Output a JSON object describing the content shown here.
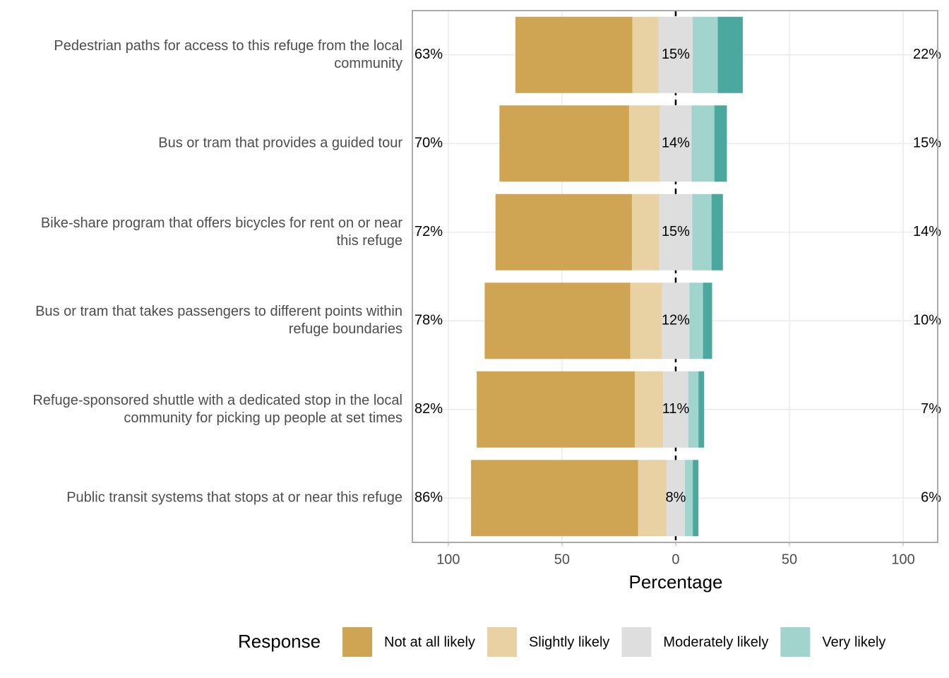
{
  "chart_data": {
    "type": "diverging-bar",
    "x_label": "Percentage",
    "legend_title": "Response",
    "categories": [
      "Pedestrian paths for access to this refuge from the local community",
      "Bus or tram that provides a guided tour",
      "Bike-share program that offers bicycles for rent on or near this refuge",
      "Bus or tram that takes passengers to different points within refuge boundaries",
      "Refuge-sponsored shuttle with a dedicated stop in the local community for picking up people at set times",
      "Public transit systems that stops at or near this refuge"
    ],
    "series": [
      {
        "name": "Not at all likely",
        "color": "#cfa553",
        "values": [
          51.5,
          57,
          60,
          64,
          69.5,
          73.5
        ]
      },
      {
        "name": "Slightly likely",
        "color": "#e8d2a3",
        "values": [
          11.5,
          13.5,
          12,
          14,
          12.5,
          12.5
        ]
      },
      {
        "name": "Moderately likely",
        "color": "#dedede",
        "values": [
          15,
          14,
          14.5,
          12,
          11,
          8
        ]
      },
      {
        "name": "Very likely",
        "color": "#a0d4cc",
        "values": [
          11,
          10,
          8.5,
          6,
          4.5,
          3.5
        ]
      },
      {
        "color": "#4aa89e",
        "values": [
          11,
          5.5,
          5,
          4,
          2.5,
          2.5
        ]
      }
    ],
    "left_percent": {
      "values": [
        63,
        70,
        72,
        78,
        82,
        86
      ],
      "value_labels": [
        "63%",
        "70%",
        "72%",
        "78%",
        "82%",
        "86%"
      ]
    },
    "neutral_percent": {
      "values": [
        15,
        14,
        15,
        12,
        11,
        8
      ],
      "value_labels": [
        "15%",
        "14%",
        "15%",
        "12%",
        "11%",
        "8%"
      ]
    },
    "right_percent": {
      "values": [
        22,
        15,
        14,
        10,
        7,
        6
      ],
      "value_labels": [
        "22%",
        "15%",
        "14%",
        "10%",
        "7%",
        "6%"
      ]
    },
    "xlim": [
      -115.8,
      115.2
    ],
    "xticks": [
      {
        "value": -100,
        "label": "100"
      },
      {
        "value": -50,
        "label": "50"
      },
      0,
      50,
      100
    ],
    "grid": true
  }
}
